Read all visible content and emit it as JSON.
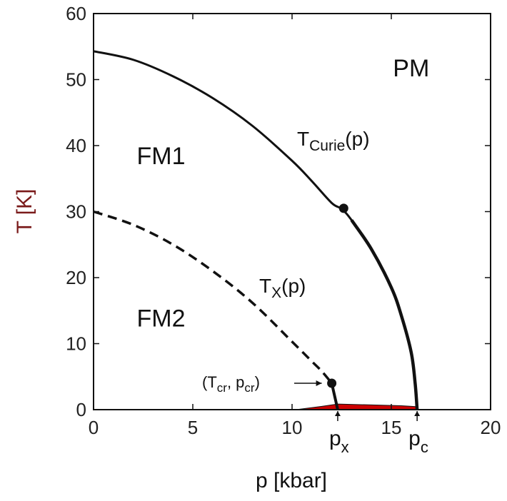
{
  "chart_data": {
    "type": "line",
    "xlabel": "p [kbar]",
    "ylabel": "T [K]",
    "xlim": [
      0,
      20
    ],
    "ylim": [
      0,
      60
    ],
    "x_ticks": [
      "0",
      "5",
      "10",
      "15",
      "20"
    ],
    "y_ticks": [
      "0",
      "10",
      "20",
      "30",
      "40",
      "50",
      "60"
    ],
    "grid": false,
    "regions": [
      {
        "label": "PM",
        "x": 16.0,
        "y": 50.5
      },
      {
        "label": "FM1",
        "x": 3.4,
        "y": 37.2
      },
      {
        "label": "FM2",
        "x": 3.4,
        "y": 12.6
      }
    ],
    "series": [
      {
        "label": {
          "main": "T",
          "sub": "Curie",
          "tail": "(p)"
        },
        "style": "solid",
        "x": [
          0,
          2,
          4,
          6,
          8,
          10,
          11,
          12,
          12.5,
          13,
          14,
          15,
          15.5,
          16,
          16.2,
          16.3
        ],
        "y": [
          54.3,
          53.0,
          50.5,
          47.2,
          43.0,
          37.7,
          34.6,
          31.3,
          30.4,
          28.7,
          24.3,
          18.5,
          14.3,
          8.7,
          4.0,
          0
        ]
      },
      {
        "label": {
          "main": "T",
          "sub": "X",
          "tail": "(p)"
        },
        "style": "dashed",
        "x": [
          0,
          2,
          4,
          6,
          8,
          10,
          11,
          11.5,
          12
        ],
        "y": [
          30.0,
          28.0,
          25.0,
          21.0,
          16.2,
          10.3,
          7.3,
          5.8,
          4.0
        ]
      },
      {
        "label": null,
        "style": "solid",
        "x": [
          12,
          12.15,
          12.3
        ],
        "y": [
          4.0,
          2.0,
          0
        ]
      }
    ],
    "points": [
      {
        "x": 12.6,
        "y": 30.5,
        "label": null
      },
      {
        "x": 12.0,
        "y": 4.0,
        "label": {
          "open": "(T",
          "sub1": "cr",
          "mid": ", p",
          "sub2": "cr",
          "close": ")"
        }
      }
    ],
    "pressure_markers": [
      {
        "main": "p",
        "sub": "x",
        "x": 12.3
      },
      {
        "main": "p",
        "sub": "c",
        "x": 16.3
      }
    ],
    "shaded_region": {
      "color": "#cc0000",
      "polygon": [
        [
          10.2,
          0
        ],
        [
          11.5,
          0.5
        ],
        [
          12.3,
          0.85
        ],
        [
          15.5,
          0.6
        ],
        [
          16.3,
          0.45
        ],
        [
          16.3,
          0
        ]
      ]
    },
    "colors": {
      "axis_labels": "#7a1a1a",
      "lines": "#111111",
      "shading": "#cc0000"
    }
  }
}
